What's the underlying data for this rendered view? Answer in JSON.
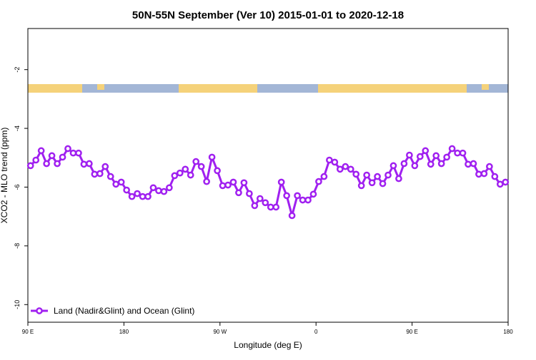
{
  "chart_data": {
    "type": "line",
    "title": "50N-55N September (Ver 10)   2015-01-01 to 2020-12-18",
    "xlabel": "Longitude (deg E)",
    "ylabel": "XCO2 - MLO trend (ppm)",
    "x": [
      92.5,
      97.5,
      102.5,
      107.5,
      112.5,
      117.5,
      122.5,
      127.5,
      132.5,
      137.5,
      142.5,
      147.5,
      152.5,
      157.5,
      162.5,
      167.5,
      172.5,
      177.5,
      182.5,
      187.5,
      192.5,
      197.5,
      202.5,
      207.5,
      212.5,
      217.5,
      222.5,
      227.5,
      232.5,
      237.5,
      242.5,
      247.5,
      252.5,
      257.5,
      262.5,
      267.5,
      272.5,
      277.5,
      282.5,
      287.5,
      292.5,
      297.5,
      302.5,
      307.5,
      312.5,
      317.5,
      322.5,
      327.5,
      332.5,
      337.5,
      342.5,
      347.5,
      352.5,
      357.5,
      362.5,
      367.5,
      372.5,
      377.5,
      382.5,
      387.5,
      392.5,
      397.5,
      402.5,
      407.5,
      412.5,
      417.5,
      422.5,
      427.5,
      432.5,
      437.5,
      442.5,
      447.5,
      452.5,
      457.5,
      462.5,
      467.5,
      472.5,
      477.5,
      482.5,
      487.5,
      492.5,
      497.5,
      502.5,
      507.5,
      512.5,
      517.5,
      522.5,
      527.5,
      532.5,
      537.5
    ],
    "series": [
      {
        "name": "Land (Nadir&Glint) and Ocean (Glint)",
        "color": "#a020f0",
        "values": [
          -5.27,
          -5.08,
          -4.76,
          -5.2,
          -4.93,
          -5.2,
          -4.98,
          -4.69,
          -4.84,
          -4.84,
          -5.22,
          -5.2,
          -5.56,
          -5.54,
          -5.3,
          -5.64,
          -5.9,
          -5.83,
          -6.1,
          -6.32,
          -6.22,
          -6.32,
          -6.32,
          -6.02,
          -6.12,
          -6.15,
          -6.02,
          -5.61,
          -5.52,
          -5.39,
          -5.59,
          -5.13,
          -5.3,
          -5.81,
          -4.98,
          -5.44,
          -5.95,
          -5.93,
          -5.83,
          -6.19,
          -5.85,
          -6.22,
          -6.63,
          -6.39,
          -6.53,
          -6.68,
          -6.68,
          -5.83,
          -6.29,
          -6.97,
          -6.29,
          -6.44,
          -6.44,
          -6.24,
          -5.81,
          -5.64,
          -5.08,
          -5.15,
          -5.39,
          -5.3,
          -5.39,
          -5.56,
          -5.95,
          -5.59,
          -5.85,
          -5.64,
          -5.88,
          -5.59,
          -5.27,
          -5.71,
          -5.2,
          -4.91,
          -5.27,
          -4.96,
          -4.76,
          -5.22,
          -4.93,
          -5.2,
          -4.98,
          -4.69,
          -4.84,
          -4.84,
          -5.22,
          -5.2,
          -5.56,
          -5.54,
          -5.3,
          -5.64,
          -5.9,
          -5.83
        ]
      }
    ],
    "xlim": [
      90,
      540
    ],
    "xticks": [
      {
        "value": 90,
        "label": "90 E"
      },
      180,
      {
        "value": 270,
        "label": "90 W"
      },
      {
        "value": 360,
        "label": "0"
      },
      {
        "value": 450,
        "label": "90 E"
      },
      {
        "value": 540,
        "label": "180"
      }
    ],
    "ylim": [
      -10.6,
      -0.6
    ],
    "yticks": [
      -10,
      -8,
      -6,
      -4,
      -2
    ],
    "legend": "bottom-left"
  }
}
